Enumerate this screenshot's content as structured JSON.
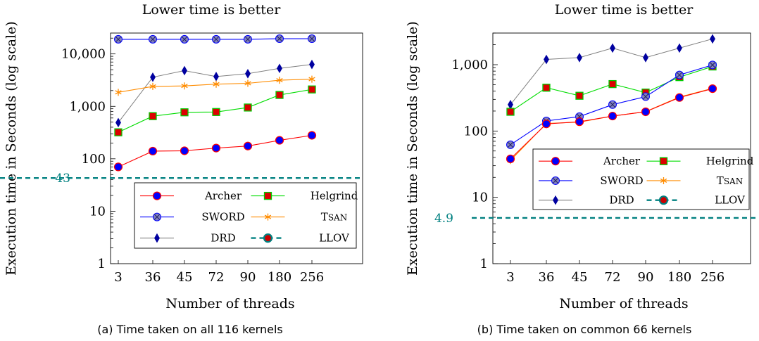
{
  "figure": {
    "captions": [
      "(a) Time taken on all 116 kernels",
      "(b) Time taken on common 66 kernels"
    ]
  },
  "colors": {
    "Archer": "#ff0000",
    "SWORD": "#0000ff",
    "DRD": "#808080",
    "Helgrind": "#00dd00",
    "TSan": "#ff8c00",
    "LLOV": "#008080"
  },
  "chart_data": [
    {
      "type": "line",
      "title": "Lower time is better",
      "xlabel": "Number of threads",
      "ylabel": "Execution time in Seconds (log scale)",
      "yscale": "log",
      "ylim": [
        1,
        25000
      ],
      "yticks": [
        1,
        10,
        100,
        1000,
        10000
      ],
      "ytick_labels": [
        "1",
        "10",
        "100",
        "1,000",
        "10,000"
      ],
      "categories": [
        "3",
        "36",
        "45",
        "72",
        "90",
        "180",
        "256"
      ],
      "grid": false,
      "legend_position": "bottom-right",
      "reference_line": {
        "name": "LLOV",
        "value": 43,
        "label": "43"
      },
      "series": [
        {
          "name": "Archer",
          "values": [
            70,
            140,
            142,
            160,
            175,
            225,
            280
          ]
        },
        {
          "name": "SWORD",
          "values": [
            19000,
            19000,
            19000,
            19000,
            19000,
            19500,
            19500
          ]
        },
        {
          "name": "DRD",
          "values": [
            490,
            3600,
            4800,
            3700,
            4200,
            5300,
            6300
          ]
        },
        {
          "name": "Helgrind",
          "values": [
            320,
            650,
            770,
            780,
            950,
            1650,
            2100
          ]
        },
        {
          "name": "TSan",
          "values": [
            1850,
            2400,
            2450,
            2650,
            2750,
            3150,
            3300
          ]
        }
      ],
      "legend": [
        "Archer",
        "Helgrind",
        "SWORD",
        "TSan",
        "DRD",
        "LLOV"
      ]
    },
    {
      "type": "line",
      "title": "Lower time is better",
      "xlabel": "Number of threads",
      "ylabel": "Execution time in Seconds (log scale)",
      "yscale": "log",
      "ylim": [
        1,
        3000
      ],
      "yticks": [
        1,
        10,
        100,
        1000
      ],
      "ytick_labels": [
        "1",
        "10",
        "100",
        "1,000"
      ],
      "categories": [
        "3",
        "36",
        "45",
        "72",
        "90",
        "180",
        "256"
      ],
      "grid": false,
      "legend_position": "center-right",
      "reference_line": {
        "name": "LLOV",
        "value": 4.9,
        "label": "4.9"
      },
      "series": [
        {
          "name": "Archer",
          "values": [
            38,
            128,
            138,
            168,
            195,
            320,
            435
          ]
        },
        {
          "name": "SWORD",
          "values": [
            62,
            142,
            165,
            250,
            330,
            700,
            990
          ]
        },
        {
          "name": "DRD",
          "values": [
            250,
            1200,
            1280,
            1780,
            1280,
            1780,
            2450
          ]
        },
        {
          "name": "Helgrind",
          "values": [
            195,
            450,
            340,
            510,
            380,
            650,
            940
          ]
        },
        {
          "name": "TSan",
          "values": [
            36,
            130,
            136,
            168,
            196,
            325,
            440
          ]
        }
      ],
      "legend": [
        "Archer",
        "Helgrind",
        "SWORD",
        "TSan",
        "DRD",
        "LLOV"
      ]
    }
  ]
}
